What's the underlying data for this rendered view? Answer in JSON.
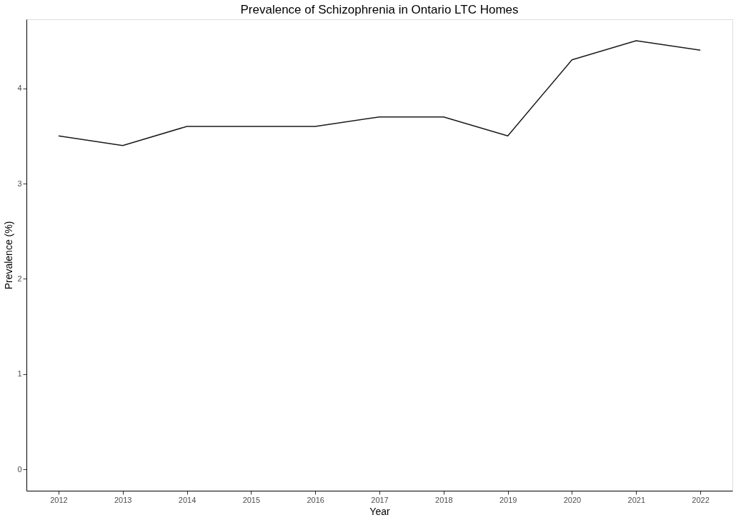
{
  "chart_data": {
    "type": "line",
    "title": "Prevalence of Schizophrenia in Ontario LTC Homes",
    "xlabel": "Year",
    "ylabel": "Prevalence (%)",
    "x": [
      2012,
      2013,
      2014,
      2015,
      2016,
      2017,
      2018,
      2019,
      2020,
      2021,
      2022
    ],
    "series": [
      {
        "color": "#1a1a1a",
        "values": [
          3.5,
          3.4,
          3.6,
          3.6,
          3.6,
          3.7,
          3.7,
          3.5,
          4.3,
          4.5,
          4.4
        ]
      }
    ],
    "xlim": [
      2011.5,
      2022.5
    ],
    "xticks": [
      2012,
      2013,
      2014,
      2015,
      2016,
      2017,
      2018,
      2019,
      2020,
      2021,
      2022
    ],
    "ylim": [
      -0.225,
      4.725
    ],
    "yticks": [
      0,
      1,
      2,
      3,
      4
    ],
    "grid": false,
    "legend": false,
    "marker": "none",
    "line_style": "solid"
  }
}
